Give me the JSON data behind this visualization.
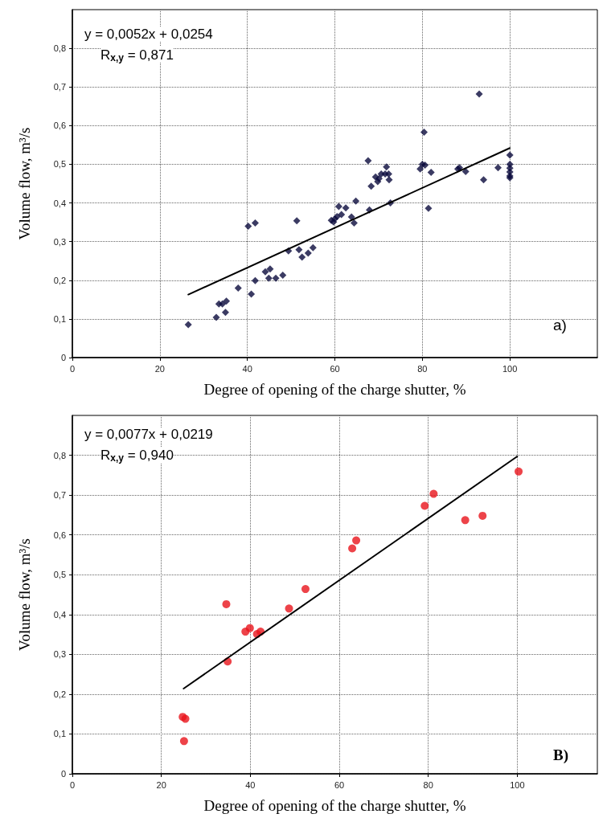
{
  "chart_data": [
    {
      "type": "scatter",
      "xlabel": "Degree of opening of the charge shutter, %",
      "ylabel": "Volume flow, m³/s",
      "annotations": [
        "y = 0,0052x + 0,0254",
        "R$_{x,y}$ = 0,871",
        "a)"
      ],
      "xlim": [
        0,
        120
      ],
      "ylim": [
        0,
        0.9
      ],
      "xticks": [
        0,
        20,
        40,
        60,
        80,
        100
      ],
      "yticks": [
        {
          "value": 0,
          "label": "0"
        },
        {
          "value": 0.1,
          "label": "0,1"
        },
        {
          "value": 0.2,
          "label": "0,2"
        },
        {
          "value": 0.3,
          "label": "0,3"
        },
        {
          "value": 0.4,
          "label": "0,4"
        },
        {
          "value": 0.5,
          "label": "0,5"
        },
        {
          "value": 0.6,
          "label": "0,6"
        },
        {
          "value": 0.7,
          "label": "0,7"
        },
        {
          "value": 0.8,
          "label": "0,8"
        }
      ],
      "grid": true,
      "series": [
        {
          "marker": "diamond",
          "color": "#0a0a3c",
          "x": [
            26.5,
            32.9,
            35.0,
            33.5,
            34.3,
            35.2,
            37.9,
            40.9,
            41.8,
            40.2,
            41.8,
            44.1,
            45.2,
            44.9,
            46.5,
            48.1,
            49.4,
            51.3,
            51.8,
            52.5,
            53.9,
            55.0,
            59.2,
            59.7,
            60.0,
            60.5,
            61.5,
            60.9,
            62.5,
            63.8,
            64.4,
            64.8,
            67.9,
            67.6,
            68.3,
            69.3,
            69.8,
            70.1,
            70.6,
            71.5,
            71.8,
            72.3,
            72.4,
            72.7,
            79.5,
            80.0,
            80.4,
            80.6,
            82.0,
            81.4,
            88.1,
            88.5,
            89.9,
            93.0,
            94.0,
            97.3,
            100,
            100,
            100,
            100,
            100,
            100
          ],
          "values": [
            0.085,
            0.104,
            0.117,
            0.139,
            0.139,
            0.146,
            0.18,
            0.164,
            0.199,
            0.34,
            0.348,
            0.222,
            0.229,
            0.205,
            0.205,
            0.213,
            0.276,
            0.354,
            0.279,
            0.26,
            0.27,
            0.284,
            0.355,
            0.351,
            0.359,
            0.365,
            0.37,
            0.391,
            0.387,
            0.364,
            0.348,
            0.405,
            0.382,
            0.509,
            0.443,
            0.467,
            0.455,
            0.463,
            0.475,
            0.475,
            0.493,
            0.475,
            0.46,
            0.4,
            0.488,
            0.5,
            0.583,
            0.498,
            0.479,
            0.386,
            0.488,
            0.491,
            0.481,
            0.682,
            0.46,
            0.491,
            0.524,
            0.5,
            0.49,
            0.48,
            0.47,
            0.465
          ]
        },
        {
          "type": "line",
          "marker": "none",
          "line_style": "solid",
          "color": "#000000",
          "x": [
            26.5,
            100
          ],
          "values": [
            0.163,
            0.542
          ]
        }
      ]
    },
    {
      "type": "scatter",
      "xlabel": "Degree of opening of the charge shutter, %",
      "ylabel": "Volume flow, m³/s",
      "annotations": [
        "y = 0,0077x + 0,0219",
        "R$_{x,y}$ = 0,940",
        "B)"
      ],
      "xlim": [
        0,
        118
      ],
      "ylim": [
        0,
        0.9
      ],
      "xticks": [
        0,
        20,
        40,
        60,
        80,
        100
      ],
      "yticks": [
        {
          "value": 0,
          "label": "0"
        },
        {
          "value": 0.1,
          "label": "0,1"
        },
        {
          "value": 0.2,
          "label": "0,2"
        },
        {
          "value": 0.3,
          "label": "0,3"
        },
        {
          "value": 0.4,
          "label": "0,4"
        },
        {
          "value": 0.5,
          "label": "0,5"
        },
        {
          "value": 0.6,
          "label": "0,6"
        },
        {
          "value": 0.7,
          "label": "0,7"
        },
        {
          "value": 0.8,
          "label": "0,8"
        }
      ],
      "grid": true,
      "series": [
        {
          "marker": "circle",
          "color": "#e8141b",
          "x": [
            24.8,
            25.4,
            25.1,
            34.6,
            34.9,
            38.9,
            39.9,
            41.5,
            42.3,
            48.7,
            52.4,
            62.9,
            63.8,
            79.2,
            81.2,
            88.3,
            92.2,
            100.3
          ],
          "values": [
            0.143,
            0.138,
            0.082,
            0.426,
            0.282,
            0.357,
            0.366,
            0.351,
            0.357,
            0.415,
            0.464,
            0.566,
            0.586,
            0.673,
            0.703,
            0.637,
            0.648,
            0.759
          ]
        },
        {
          "type": "line",
          "marker": "none",
          "line_style": "solid",
          "color": "#000000",
          "x": [
            25,
            100
          ],
          "values": [
            0.214,
            0.797
          ]
        }
      ]
    }
  ]
}
